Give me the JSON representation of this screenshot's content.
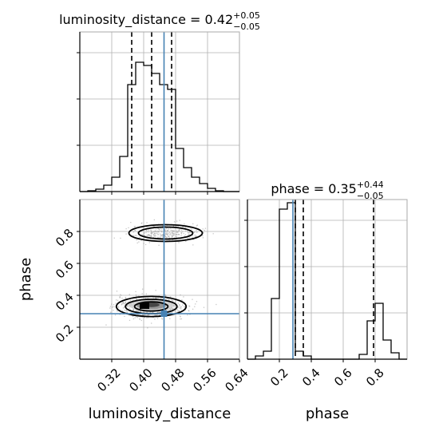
{
  "chart_data": {
    "type": "corner",
    "parameters": [
      "luminosity_distance",
      "phase"
    ],
    "truths": {
      "luminosity_distance": 0.451,
      "phase": 0.285
    },
    "grid": true,
    "panels": [
      {
        "id": "lumdist-hist",
        "type": "histogram",
        "parameter": "luminosity_distance",
        "title_base": "luminosity_distance = 0.42",
        "title_sup": "+0.05",
        "title_sub": "−0.05",
        "xlim": [
          0.24,
          0.64
        ],
        "ylim": [
          0,
          1.0
        ],
        "bin_edges": [
          0.24,
          0.26,
          0.28,
          0.3,
          0.32,
          0.34,
          0.36,
          0.38,
          0.4,
          0.42,
          0.44,
          0.46,
          0.48,
          0.5,
          0.52,
          0.54,
          0.56,
          0.58,
          0.6,
          0.62,
          0.64
        ],
        "counts": [
          0,
          0.005,
          0.015,
          0.04,
          0.09,
          0.22,
          0.67,
          0.81,
          0.79,
          0.74,
          0.67,
          0.64,
          0.27,
          0.15,
          0.09,
          0.05,
          0.02,
          0.005,
          0,
          0
        ],
        "quantiles": [
          0.37,
          0.42,
          0.47
        ],
        "truth": 0.451
      },
      {
        "id": "phase-hist",
        "type": "histogram",
        "parameter": "phase",
        "title_base": "phase = 0.35",
        "title_sup": "+0.44",
        "title_sub": "−0.05",
        "xlim": [
          0.0,
          1.0
        ],
        "ylim": [
          0,
          1.0
        ],
        "bin_edges": [
          0.0,
          0.05,
          0.1,
          0.15,
          0.2,
          0.25,
          0.3,
          0.35,
          0.4,
          0.45,
          0.5,
          0.55,
          0.6,
          0.65,
          0.7,
          0.75,
          0.8,
          0.85,
          0.9,
          0.95,
          1.0
        ],
        "counts": [
          0,
          0.02,
          0.05,
          0.38,
          0.94,
          0.98,
          0.05,
          0.02,
          0,
          0,
          0,
          0,
          0,
          0,
          0.03,
          0.24,
          0.35,
          0.12,
          0.04,
          0
        ],
        "quantiles": [
          0.3,
          0.35,
          0.79
        ],
        "truth": 0.285,
        "xticks": [
          0.2,
          0.4,
          0.6,
          0.8
        ],
        "xticklabels": [
          "0.2",
          "0.4",
          "0.6",
          "0.8"
        ],
        "xlabel": "phase"
      },
      {
        "id": "joint",
        "type": "2d-density",
        "x": "luminosity_distance",
        "y": "phase",
        "xlim": [
          0.24,
          0.64
        ],
        "ylim": [
          0.0,
          1.0
        ],
        "xticks": [
          0.32,
          0.4,
          0.48,
          0.56,
          0.64
        ],
        "xticklabels": [
          "0.32",
          "0.40",
          "0.48",
          "0.56",
          "0.64"
        ],
        "yticks": [
          0.2,
          0.4,
          0.6,
          0.8
        ],
        "yticklabels": [
          "0.2",
          "0.4",
          "0.6",
          "0.8"
        ],
        "xlabel": "luminosity_distance",
        "ylabel": "phase",
        "modes": [
          {
            "center_x": 0.419,
            "center_y": 0.33,
            "sigma_x": 0.038,
            "sigma_y": 0.03,
            "weight": 0.7
          },
          {
            "center_x": 0.455,
            "center_y": 0.79,
            "sigma_x": 0.04,
            "sigma_y": 0.025,
            "weight": 0.3
          }
        ]
      }
    ]
  }
}
